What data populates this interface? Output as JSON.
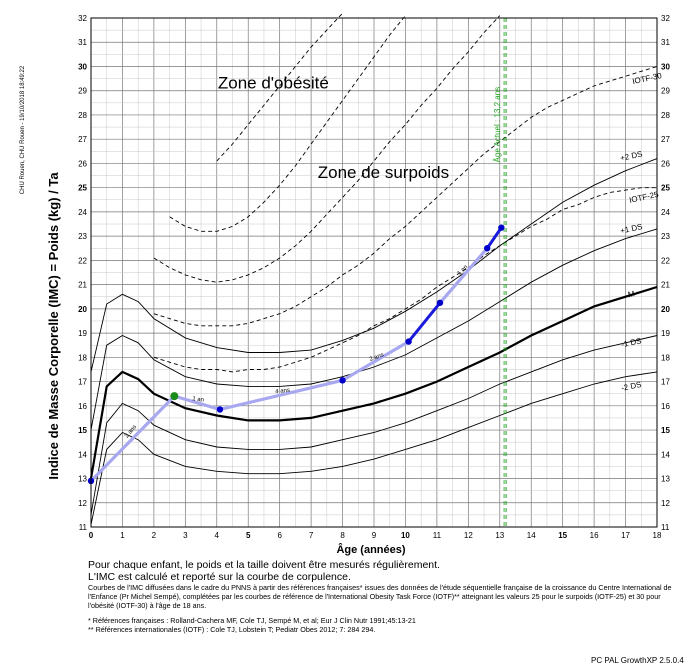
{
  "chart_data": {
    "type": "line",
    "ylabel": "Indice de Masse Corporelle (IMC) = Poids (kg) / Ta",
    "xlabel": "Âge (années)",
    "xlim": [
      0,
      18
    ],
    "ylim": [
      11,
      32
    ],
    "grid": true,
    "x_ticks": [
      0,
      1,
      2,
      3,
      4,
      5,
      6,
      7,
      8,
      9,
      10,
      11,
      12,
      13,
      14,
      15,
      16,
      17,
      18
    ],
    "y_ticks": [
      11,
      12,
      13,
      14,
      15,
      16,
      17,
      18,
      19,
      20,
      21,
      22,
      23,
      24,
      25,
      26,
      27,
      28,
      29,
      30,
      31,
      32
    ],
    "zones": [
      {
        "label": "Zone d'obésité",
        "x": 5.8,
        "y": 29.1
      },
      {
        "label": "Zone de surpoids",
        "x": 9.3,
        "y": 25.4
      }
    ],
    "reference_curves": [
      {
        "name": "IOTF-30",
        "style": "dashed",
        "x": [
          2,
          2.5,
          3,
          3.5,
          4,
          4.5,
          5,
          5.5,
          6,
          6.5,
          7,
          7.5,
          8,
          8.5,
          9,
          9.5,
          10,
          10.5,
          11,
          11.5,
          12,
          12.5,
          13,
          13.5,
          14,
          14.5,
          15,
          15.5,
          16,
          16.5,
          17,
          17.5,
          18
        ],
        "y": [
          19.8,
          19.6,
          19.4,
          19.3,
          19.3,
          19.3,
          19.4,
          19.6,
          19.8,
          20.1,
          20.5,
          20.9,
          21.4,
          21.8,
          22.3,
          22.9,
          23.4,
          24.0,
          24.6,
          25.2,
          25.8,
          26.4,
          26.9,
          27.4,
          27.9,
          28.3,
          28.6,
          28.9,
          29.2,
          29.4,
          29.6,
          29.8,
          30.0
        ]
      },
      {
        "name": "+2 DS",
        "style": "solid",
        "x": [
          0,
          0.5,
          1,
          1.5,
          2,
          3,
          4,
          5,
          6,
          7,
          8,
          9,
          10,
          11,
          12,
          13,
          14,
          15,
          16,
          17,
          18
        ],
        "y": [
          17.4,
          20.2,
          20.6,
          20.3,
          19.6,
          18.8,
          18.4,
          18.2,
          18.2,
          18.3,
          18.7,
          19.2,
          19.9,
          20.7,
          21.6,
          22.6,
          23.5,
          24.4,
          25.1,
          25.7,
          26.2
        ]
      },
      {
        "name": "IOTF-25",
        "style": "dashed",
        "x": [
          2,
          2.5,
          3,
          3.5,
          4,
          4.5,
          5,
          5.5,
          6,
          6.5,
          7,
          7.5,
          8,
          8.5,
          9,
          9.5,
          10,
          10.5,
          11,
          11.5,
          12,
          12.5,
          13,
          13.5,
          14,
          14.5,
          15,
          15.5,
          16,
          16.5,
          17,
          17.5,
          18
        ],
        "y": [
          18.0,
          17.8,
          17.6,
          17.5,
          17.5,
          17.4,
          17.5,
          17.5,
          17.6,
          17.8,
          18.0,
          18.3,
          18.6,
          18.9,
          19.3,
          19.6,
          20.0,
          20.4,
          20.9,
          21.3,
          21.7,
          22.2,
          22.6,
          23.0,
          23.4,
          23.7,
          24.1,
          24.3,
          24.6,
          24.8,
          24.9,
          25.0,
          25.0
        ]
      },
      {
        "name": "+1 DS",
        "style": "solid",
        "x": [
          0,
          0.5,
          1,
          1.5,
          2,
          3,
          4,
          5,
          6,
          7,
          8,
          9,
          10,
          11,
          12,
          13,
          14,
          15,
          16,
          17,
          18
        ],
        "y": [
          15.0,
          18.5,
          18.9,
          18.6,
          17.9,
          17.2,
          16.9,
          16.8,
          16.8,
          16.9,
          17.2,
          17.6,
          18.1,
          18.8,
          19.5,
          20.3,
          21.1,
          21.8,
          22.4,
          22.9,
          23.3
        ]
      },
      {
        "name": "M",
        "style": "bold",
        "x": [
          0,
          0.5,
          1,
          1.5,
          2,
          3,
          4,
          5,
          6,
          7,
          8,
          9,
          10,
          11,
          12,
          13,
          14,
          15,
          16,
          17,
          18
        ],
        "y": [
          13.0,
          16.8,
          17.4,
          17.1,
          16.5,
          15.9,
          15.6,
          15.4,
          15.4,
          15.5,
          15.8,
          16.1,
          16.5,
          17.0,
          17.6,
          18.2,
          18.9,
          19.5,
          20.1,
          20.5,
          20.9
        ]
      },
      {
        "name": "-1 DS",
        "style": "solid",
        "x": [
          0,
          0.5,
          1,
          1.5,
          2,
          3,
          4,
          5,
          6,
          7,
          8,
          9,
          10,
          11,
          12,
          13,
          14,
          15,
          16,
          17,
          18
        ],
        "y": [
          11.5,
          15.3,
          16.1,
          15.8,
          15.2,
          14.6,
          14.3,
          14.2,
          14.2,
          14.3,
          14.6,
          14.9,
          15.3,
          15.8,
          16.3,
          16.9,
          17.4,
          17.9,
          18.3,
          18.6,
          18.9
        ]
      },
      {
        "name": "-2 DS",
        "style": "solid",
        "x": [
          0,
          0.5,
          1,
          1.5,
          2,
          3,
          4,
          5,
          6,
          7,
          8,
          9,
          10,
          11,
          12,
          13,
          14,
          15,
          16,
          17,
          18
        ],
        "y": [
          11.1,
          14.2,
          14.9,
          14.6,
          14.0,
          13.5,
          13.3,
          13.2,
          13.2,
          13.3,
          13.5,
          13.8,
          14.2,
          14.6,
          15.1,
          15.6,
          16.1,
          16.5,
          16.9,
          17.2,
          17.4
        ]
      },
      {
        "name": "",
        "style": "dashed",
        "x": [
          2,
          2.5,
          3,
          3.5,
          4,
          4.5,
          5,
          5.5,
          6,
          6.5,
          7,
          7.5,
          8,
          8.5,
          9,
          9.5,
          10,
          10.5,
          11,
          11.5,
          12,
          12.5,
          13
        ],
        "y": [
          22.1,
          21.7,
          21.4,
          21.2,
          21.1,
          21.2,
          21.4,
          21.7,
          22.1,
          22.6,
          23.2,
          23.9,
          24.6,
          25.3,
          26.1,
          26.9,
          27.6,
          28.4,
          29.1,
          29.9,
          30.6,
          31.4,
          32.1
        ]
      },
      {
        "name": "",
        "style": "dashed",
        "x": [
          2.5,
          3,
          3.5,
          4,
          4.5,
          5,
          5.5,
          6,
          6.5,
          7,
          7.5,
          8,
          8.5,
          9,
          9.5,
          10
        ],
        "y": [
          23.8,
          23.4,
          23.2,
          23.2,
          23.4,
          23.8,
          24.4,
          25.1,
          25.9,
          26.8,
          27.7,
          28.6,
          29.5,
          30.4,
          31.3,
          32.1
        ]
      },
      {
        "name": "",
        "style": "dashed",
        "x": [
          4,
          4.5,
          5,
          5.5,
          6,
          6.5,
          7,
          7.5,
          8
        ],
        "y": [
          26.1,
          26.8,
          27.6,
          28.4,
          29.2,
          30.0,
          30.8,
          31.5,
          32.2
        ]
      }
    ],
    "curve_labels": [
      {
        "text": "IOTF-30",
        "x": 17.7,
        "y": 29.4
      },
      {
        "text": "+2 DS",
        "x": 17.2,
        "y": 26.2
      },
      {
        "text": "IOTF-25",
        "x": 17.6,
        "y": 24.5
      },
      {
        "text": "+1 DS",
        "x": 17.2,
        "y": 23.2
      },
      {
        "text": "M",
        "x": 17.2,
        "y": 20.5
      },
      {
        "text": "-1 DS",
        "x": 17.2,
        "y": 18.5
      },
      {
        "text": "-2 DS",
        "x": 17.2,
        "y": 16.7
      }
    ],
    "measurements": {
      "name": "Patient",
      "x": [
        0,
        2.65,
        4.1,
        8.0,
        10.1,
        11.1,
        12.6,
        13.05
      ],
      "y": [
        12.9,
        16.4,
        15.85,
        17.05,
        18.65,
        20.25,
        22.5,
        23.35
      ],
      "segment_colors": [
        "#a8a8f0",
        "#a8a8f0",
        "#a8a8f0",
        "#a8a8f0",
        "#1a1adc",
        "#a8a8f0",
        "#1a1adc"
      ],
      "point_colors": [
        "#0000cc",
        "#1a8a1a",
        "#0000cc",
        "#0000cc",
        "#0000cc",
        "#0000cc",
        "#0000cc",
        "#0000cc"
      ]
    },
    "segment_labels": [
      {
        "text": "2 ans",
        "x": 1.3,
        "y": 14.9,
        "angle": -50
      },
      {
        "text": "1 an",
        "x": 3.4,
        "y": 16.2,
        "angle": 8
      },
      {
        "text": "4 ans",
        "x": 6.1,
        "y": 16.55,
        "angle": -7
      },
      {
        "text": "2 ans",
        "x": 9.1,
        "y": 17.95,
        "angle": -20
      },
      {
        "text": "1 an",
        "x": 11.85,
        "y": 21.55,
        "angle": -45
      }
    ],
    "current_age_line": {
      "x": 13.2,
      "label": "Âge Actuel : 13,2 ans",
      "color": "#19a019"
    }
  },
  "side_note": "CHU Rouen, CHU Rouen - 19/10/2018 18:49:22",
  "notes": {
    "line1": "Pour chaque enfant, le poids et la taille doivent être mesurés régulièrement.",
    "line2": "L'IMC est calculé et reporté sur la courbe de corpulence.",
    "small": "Courbes de l'IMC diffusées dans le cadre du PNNS à partir des références françaises* issues des données de l'étude séquentielle française de la croissance du Centre International de l'Enfance (Pr Michel Sempé), complétées par les courbes de référence de l'International Obesity Task Force (IOTF)** atteignant les valeurs 25 pour le surpoids (IOTF-25) et 30 pour l'obésité (IOTF-30) à l'âge de 18 ans.",
    "ref1": "* Références françaises : Rolland-Cachera MF, Cole TJ, Sempé M, et al; Eur J Clin Nutr 1991;45:13-21",
    "ref2": "** Références internationales (IOTF) : Cole TJ, Lobstein T; Pediatr Obes 2012; 7: 284 294."
  },
  "footer": "PC PAL   GrowthXP 2.5.0.4"
}
